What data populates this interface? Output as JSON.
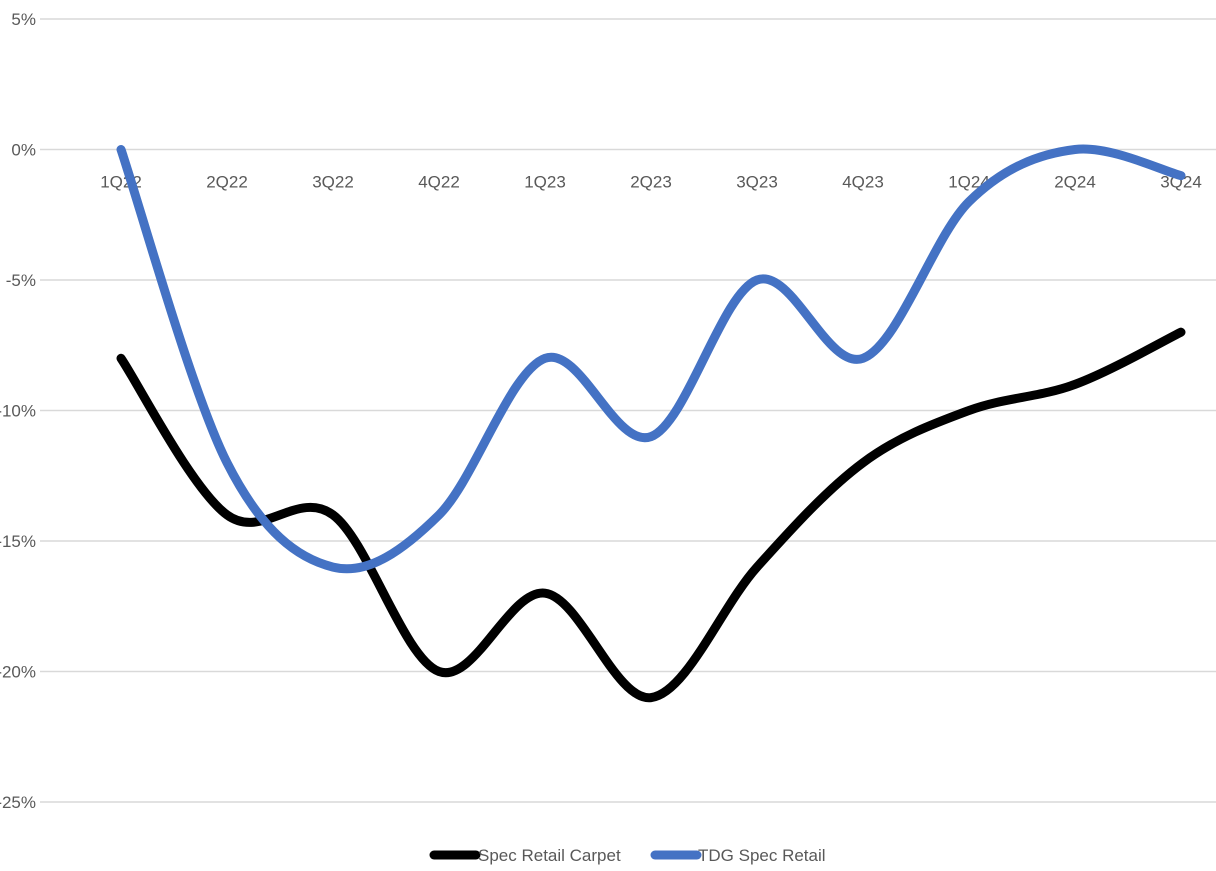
{
  "chart_data": {
    "type": "line",
    "title": "",
    "xlabel": "",
    "ylabel": "",
    "categories": [
      "1Q22",
      "2Q22",
      "3Q22",
      "4Q22",
      "1Q23",
      "2Q23",
      "3Q23",
      "4Q23",
      "1Q24",
      "2Q24",
      "3Q24"
    ],
    "ylim": [
      -25,
      5
    ],
    "yticks": [
      5,
      0,
      -5,
      -10,
      -15,
      -20,
      -25
    ],
    "ytick_labels": [
      "5%",
      "0%",
      "-5%",
      "-10%",
      "-15%",
      "-20%",
      "-25%"
    ],
    "y_unit": "%",
    "grid": true,
    "smooth": true,
    "category_axis_at": 0,
    "legend_position": "bottom",
    "series": [
      {
        "name": "Spec Retail Carpet",
        "color": "#000000",
        "values": [
          -8,
          -14,
          -14,
          -20,
          -17,
          -21,
          -16,
          -12,
          -10,
          -9,
          -7
        ]
      },
      {
        "name": "TDG Spec Retail",
        "color": "#4472C4",
        "values": [
          0,
          -12,
          -16,
          -14,
          -8,
          -11,
          -5,
          -8,
          -2,
          0,
          -1
        ]
      }
    ]
  }
}
